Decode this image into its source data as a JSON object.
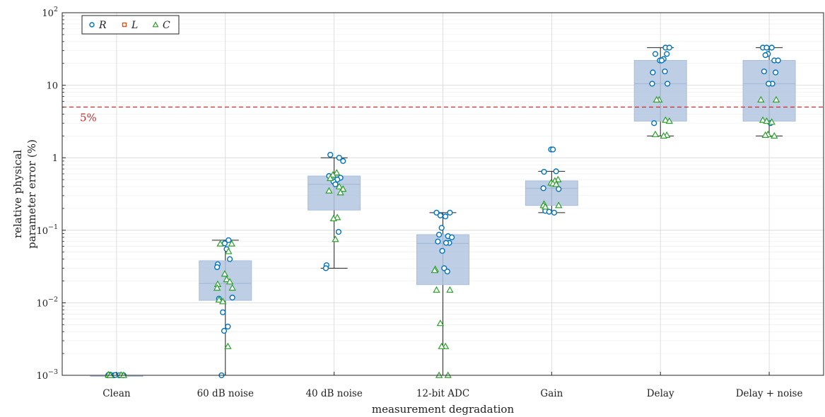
{
  "chart_data": {
    "type": "box",
    "title": "",
    "xlabel": "measurement degradation",
    "ylabel": [
      "relative physical",
      "parameter error (%)"
    ],
    "yscale": "log",
    "ylim": [
      0.001,
      100
    ],
    "ytick_values": [
      0.001,
      0.01,
      0.1,
      1,
      10,
      100
    ],
    "ytick_labels": [
      {
        "base": "10",
        "exp": "−3"
      },
      {
        "base": "10",
        "exp": "−2"
      },
      {
        "base": "10",
        "exp": "−1"
      },
      {
        "base": "1",
        "exp": ""
      },
      {
        "base": "10",
        "exp": ""
      },
      {
        "base": "10",
        "exp": "2"
      }
    ],
    "grid": true,
    "categories": [
      "Clean",
      "60 dB noise",
      "40 dB noise",
      "12-bit ADC",
      "Gain",
      "Delay",
      "Delay + noise"
    ],
    "reference_line": {
      "value": 5,
      "label": "5%",
      "color": "#d62728"
    },
    "legend": {
      "position": "top-left",
      "entries": [
        {
          "name": "R",
          "marker": "circle",
          "color": "#0072bd"
        },
        {
          "name": "L",
          "marker": "square",
          "color": "#d95319"
        },
        {
          "name": "C",
          "marker": "triangle",
          "color": "#2ca02c"
        }
      ]
    },
    "box_color": "#b3c6e0",
    "boxes": [
      {
        "category": "Clean",
        "whisker_low": 0.001,
        "q1": 0.001,
        "median": 0.001,
        "q3": 0.001,
        "whisker_high": 0.001
      },
      {
        "category": "60 dB noise",
        "whisker_low": 0.001,
        "q1": 0.0108,
        "median": 0.0185,
        "q3": 0.038,
        "whisker_high": 0.073
      },
      {
        "category": "40 dB noise",
        "whisker_low": 0.03,
        "q1": 0.19,
        "median": 0.43,
        "q3": 0.56,
        "whisker_high": 1.0
      },
      {
        "category": "12-bit ADC",
        "whisker_low": 0.001,
        "q1": 0.0178,
        "median": 0.066,
        "q3": 0.087,
        "whisker_high": 0.175
      },
      {
        "category": "Gain",
        "whisker_low": 0.175,
        "q1": 0.22,
        "median": 0.38,
        "q3": 0.48,
        "whisker_high": 0.65
      },
      {
        "category": "Delay",
        "whisker_low": 2.0,
        "q1": 3.2,
        "median": 10.5,
        "q3": 22,
        "whisker_high": 33
      },
      {
        "category": "Delay + noise",
        "whisker_low": 2.0,
        "q1": 3.2,
        "median": 10.5,
        "q3": 22,
        "whisker_high": 33
      }
    ],
    "series": [
      {
        "name": "R",
        "marker": "circle",
        "values": [
          [
            0.00101,
            0.001,
            0.00102,
            0.001,
            0.001,
            0.00101
          ],
          [
            0.073,
            0.066,
            0.055,
            0.04,
            0.034,
            0.031,
            0.0118,
            0.0114,
            0.0074,
            0.0047,
            0.0041,
            0.001
          ],
          [
            1.1,
            1.0,
            0.9,
            0.56,
            0.53,
            0.5,
            0.47,
            0.43,
            0.095,
            0.033,
            0.03
          ],
          [
            0.175,
            0.175,
            0.16,
            0.155,
            0.108,
            0.087,
            0.083,
            0.08,
            0.07,
            0.067,
            0.067,
            0.052,
            0.03,
            0.027
          ],
          [
            1.3,
            1.3,
            0.65,
            0.64,
            0.38,
            0.37,
            0.185,
            0.18,
            0.175
          ],
          [
            33,
            33,
            27,
            27,
            23,
            22,
            22,
            15.5,
            15,
            10.5,
            10.5,
            3.0
          ],
          [
            33,
            33,
            33,
            27,
            26,
            22,
            22,
            15.5,
            15,
            10.5,
            10.5,
            3.0
          ]
        ]
      },
      {
        "name": "L",
        "marker": "square",
        "values": [
          [],
          [],
          [],
          [],
          [],
          [],
          []
        ]
      },
      {
        "name": "C",
        "marker": "triangle",
        "values": [
          [
            0.00101,
            0.001,
            0.00102,
            0.001,
            0.001
          ],
          [
            0.065,
            0.065,
            0.051,
            0.025,
            0.021,
            0.0195,
            0.018,
            0.016,
            0.016,
            0.011,
            0.0104,
            0.0025
          ],
          [
            0.62,
            0.58,
            0.52,
            0.4,
            0.37,
            0.35,
            0.33,
            0.15,
            0.145,
            0.075
          ],
          [
            0.029,
            0.028,
            0.015,
            0.015,
            0.0052,
            0.0025,
            0.0025,
            0.001,
            0.001
          ],
          [
            0.5,
            0.48,
            0.45,
            0.44,
            0.43,
            0.23,
            0.22,
            0.22,
            0.21
          ],
          [
            6.3,
            6.3,
            3.3,
            3.2,
            2.1,
            2.05,
            2.0
          ],
          [
            6.3,
            6.3,
            3.3,
            3.2,
            3.1,
            2.1,
            2.05,
            2.0
          ]
        ]
      }
    ]
  }
}
